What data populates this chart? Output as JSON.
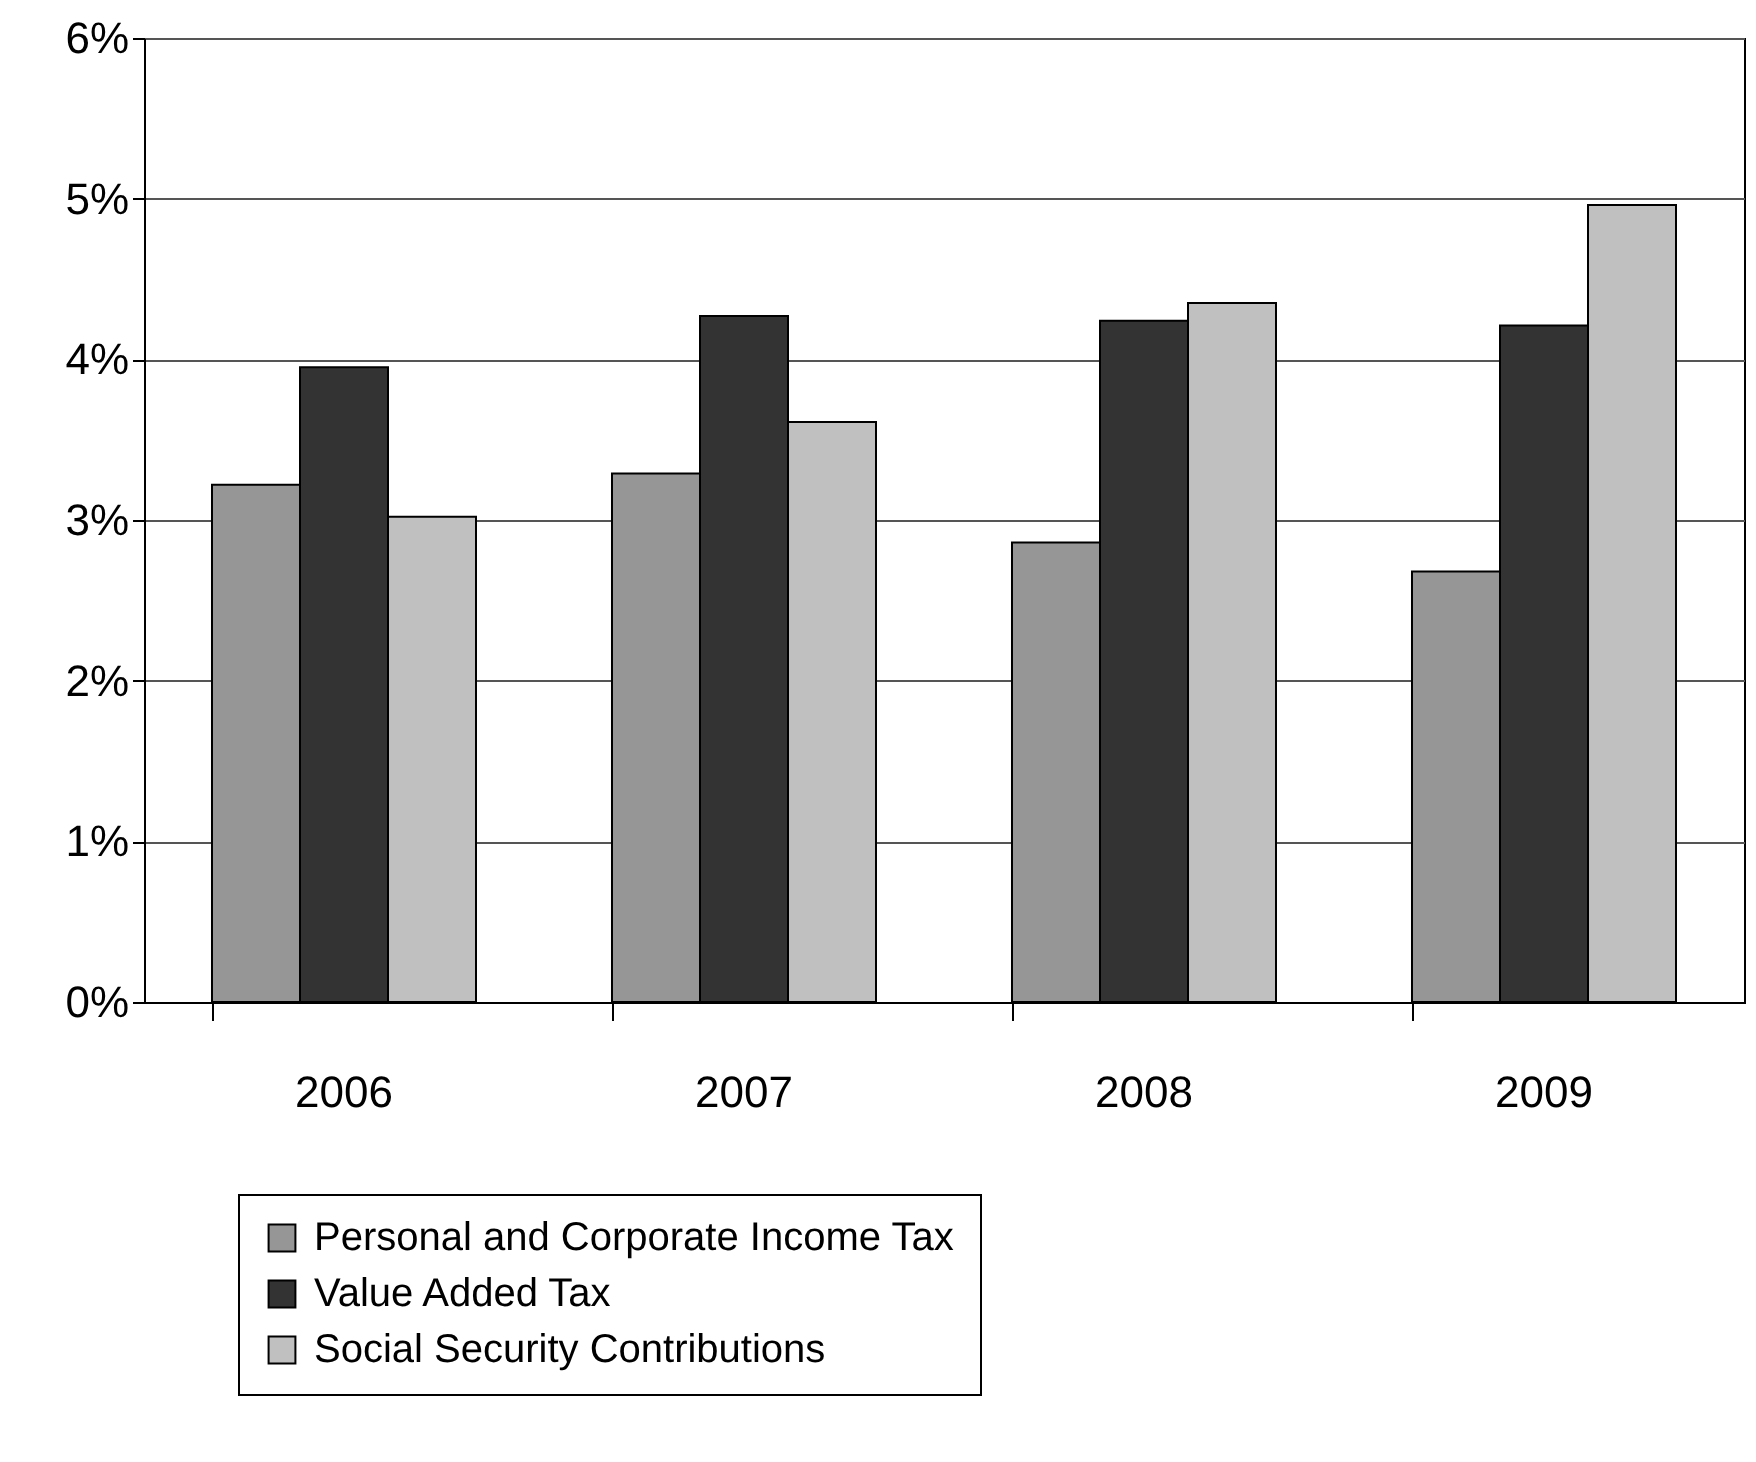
{
  "chart_data": {
    "type": "bar",
    "categories": [
      "2006",
      "2007",
      "2008",
      "2009"
    ],
    "series": [
      {
        "name": "Personal and Corporate Income Tax",
        "color": "#969696",
        "values": [
          3.22,
          3.29,
          2.86,
          2.68
        ]
      },
      {
        "name": "Value Added Tax",
        "color": "#333333",
        "values": [
          3.95,
          4.27,
          4.24,
          4.21
        ]
      },
      {
        "name": "Social Security Contributions",
        "color": "#c0c0c0",
        "values": [
          3.02,
          3.61,
          4.35,
          4.96
        ]
      }
    ],
    "ylim": [
      0,
      6
    ],
    "yticks": [
      {
        "value": 0,
        "label": "0%"
      },
      {
        "value": 1,
        "label": "1%"
      },
      {
        "value": 2,
        "label": "2%"
      },
      {
        "value": 3,
        "label": "3%"
      },
      {
        "value": 4,
        "label": "4%"
      },
      {
        "value": 5,
        "label": "5%"
      },
      {
        "value": 6,
        "label": "6%"
      }
    ],
    "grid": "y",
    "legend": "bottom"
  }
}
